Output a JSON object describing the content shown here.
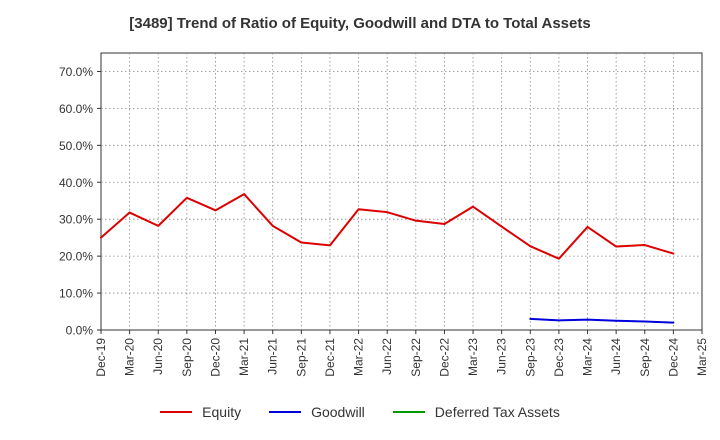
{
  "chart_data": {
    "type": "line",
    "title": "[3489]  Trend of Ratio of Equity, Goodwill and DTA to Total Assets",
    "xlabel": "",
    "ylabel": "",
    "ylim": [
      0,
      0.75
    ],
    "yticks": [
      0,
      0.1,
      0.2,
      0.3,
      0.4,
      0.5,
      0.6,
      0.7
    ],
    "ytick_labels": [
      "0.0%",
      "10.0%",
      "20.0%",
      "30.0%",
      "40.0%",
      "50.0%",
      "60.0%",
      "70.0%"
    ],
    "categories": [
      "Dec-19",
      "Mar-20",
      "Jun-20",
      "Sep-20",
      "Dec-20",
      "Mar-21",
      "Jun-21",
      "Sep-21",
      "Dec-21",
      "Mar-22",
      "Jun-22",
      "Sep-22",
      "Dec-22",
      "Mar-23",
      "Jun-23",
      "Sep-23",
      "Dec-23",
      "Mar-24",
      "Jun-24",
      "Sep-24",
      "Dec-24",
      "Mar-25"
    ],
    "grid": true,
    "legend_position": "bottom",
    "series": [
      {
        "name": "Equity",
        "color": "#dd0000",
        "values": [
          0.25,
          0.318,
          0.282,
          0.358,
          0.324,
          0.368,
          0.282,
          0.237,
          0.229,
          0.327,
          0.319,
          0.296,
          0.287,
          0.334,
          0.28,
          0.227,
          0.193,
          0.279,
          0.226,
          0.23,
          0.207,
          null
        ]
      },
      {
        "name": "Goodwill",
        "color": "#0000dd",
        "values": [
          null,
          null,
          null,
          null,
          null,
          null,
          null,
          null,
          null,
          null,
          null,
          null,
          null,
          null,
          null,
          0.03,
          0.026,
          0.028,
          0.025,
          0.023,
          0.02,
          null
        ]
      },
      {
        "name": "Deferred Tax Assets",
        "color": "#009900",
        "values": [
          null,
          null,
          null,
          null,
          null,
          null,
          null,
          null,
          null,
          null,
          null,
          null,
          null,
          null,
          null,
          null,
          null,
          null,
          null,
          null,
          null,
          null
        ]
      }
    ]
  }
}
